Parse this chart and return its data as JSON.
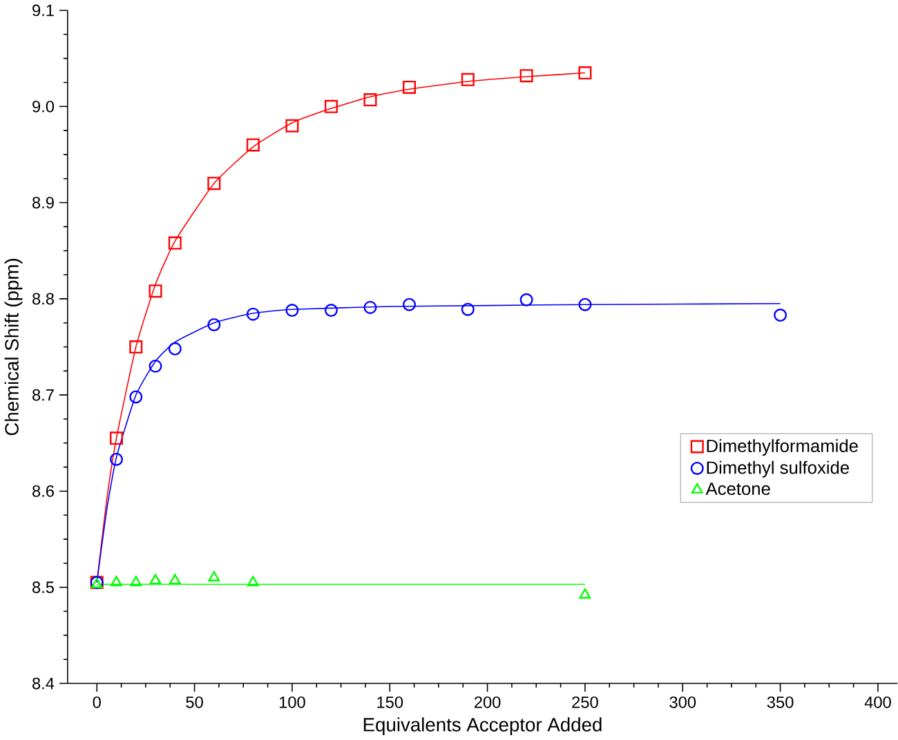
{
  "chart_data": {
    "type": "scatter",
    "xlabel": "Equivalents Acceptor Added",
    "ylabel": "Chemical Shift (ppm)",
    "xlim": [
      -15,
      410
    ],
    "ylim": [
      8.4,
      9.1
    ],
    "xticks": [
      0,
      50,
      100,
      150,
      200,
      250,
      300,
      350,
      400
    ],
    "yticks": [
      {
        "value": 8.4,
        "label": "8.4"
      },
      {
        "value": 8.5,
        "label": "8.5"
      },
      {
        "value": 8.6,
        "label": "8.6"
      },
      {
        "value": 8.7,
        "label": "8.7"
      },
      {
        "value": 8.8,
        "label": "8.8"
      },
      {
        "value": 8.9,
        "label": "8.9"
      },
      {
        "value": 9.0,
        "label": "9.0"
      },
      {
        "value": 9.1,
        "label": "9.1"
      }
    ],
    "legend": "right",
    "grid": false,
    "series": [
      {
        "name": "Dimethylformamide",
        "color": "#ff0000",
        "marker": "square",
        "x": [
          0,
          10,
          20,
          30,
          40,
          60,
          80,
          100,
          120,
          140,
          160,
          190,
          220,
          250
        ],
        "values": [
          8.505,
          8.655,
          8.75,
          8.808,
          8.858,
          8.92,
          8.96,
          8.98,
          9.0,
          9.007,
          9.02,
          9.028,
          9.032,
          9.035
        ]
      },
      {
        "name": "Dimethyl sulfoxide",
        "color": "#0000ff",
        "marker": "circle",
        "x": [
          0,
          10,
          20,
          30,
          40,
          60,
          80,
          100,
          120,
          140,
          160,
          190,
          220,
          250,
          350
        ],
        "values": [
          8.505,
          8.633,
          8.698,
          8.73,
          8.748,
          8.773,
          8.784,
          8.788,
          8.788,
          8.791,
          8.794,
          8.789,
          8.799,
          8.794,
          8.783
        ]
      },
      {
        "name": "Acetone",
        "color": "#00ff00",
        "marker": "triangle",
        "x": [
          0,
          10,
          20,
          30,
          40,
          60,
          80,
          250
        ],
        "values": [
          8.503,
          8.505,
          8.505,
          8.507,
          8.507,
          8.51,
          8.505,
          8.492
        ]
      },
      {
        "type": "line",
        "color": "#ff0000",
        "x": [
          0,
          5,
          10,
          20,
          30,
          40,
          60,
          80,
          100,
          120,
          140,
          160,
          190,
          220,
          250
        ],
        "values": [
          8.505,
          8.59,
          8.655,
          8.75,
          8.815,
          8.86,
          8.92,
          8.958,
          8.983,
          8.998,
          9.01,
          9.018,
          9.026,
          9.031,
          9.035
        ]
      },
      {
        "type": "line",
        "color": "#0000ff",
        "x": [
          0,
          5,
          10,
          20,
          30,
          40,
          60,
          80,
          100,
          150,
          200,
          250,
          350
        ],
        "values": [
          8.505,
          8.58,
          8.635,
          8.7,
          8.735,
          8.755,
          8.775,
          8.785,
          8.789,
          8.792,
          8.793,
          8.794,
          8.795
        ]
      },
      {
        "type": "line",
        "color": "#00ff00",
        "x": [
          0,
          250
        ],
        "values": [
          8.503,
          8.503
        ]
      }
    ]
  }
}
